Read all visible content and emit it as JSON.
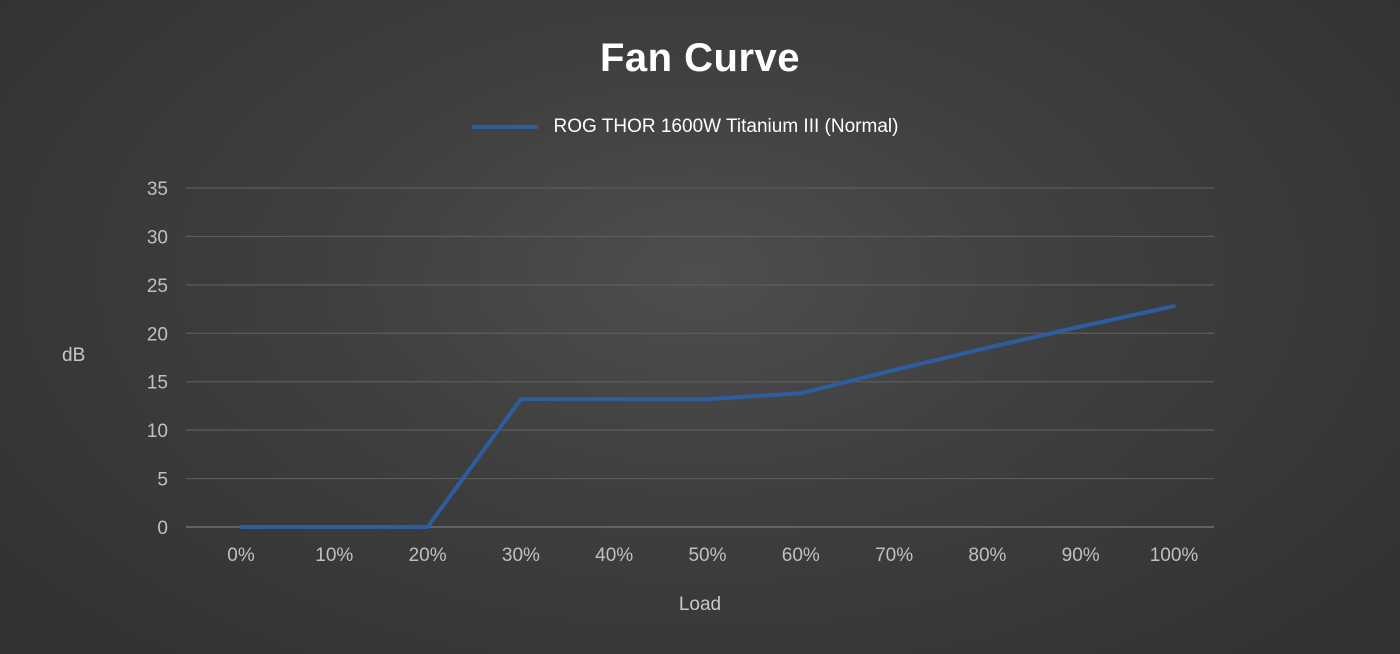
{
  "chart_data": {
    "type": "line",
    "title": "Fan Curve",
    "xlabel": "Load",
    "ylabel": "dB",
    "categories": [
      "0%",
      "10%",
      "20%",
      "30%",
      "40%",
      "50%",
      "60%",
      "70%",
      "80%",
      "90%",
      "100%"
    ],
    "y_ticks": [
      "0",
      "5",
      "10",
      "15",
      "20",
      "25",
      "30",
      "35"
    ],
    "ylim": [
      0,
      35
    ],
    "grid": "horizontal",
    "legend": "top-center",
    "series": [
      {
        "name": "ROG THOR 1600W Titanium III (Normal)",
        "color": "#2e5d9e",
        "values": [
          0,
          0,
          0,
          13.2,
          13.2,
          13.2,
          13.8,
          16.2,
          18.5,
          20.7,
          22.8
        ]
      }
    ]
  }
}
